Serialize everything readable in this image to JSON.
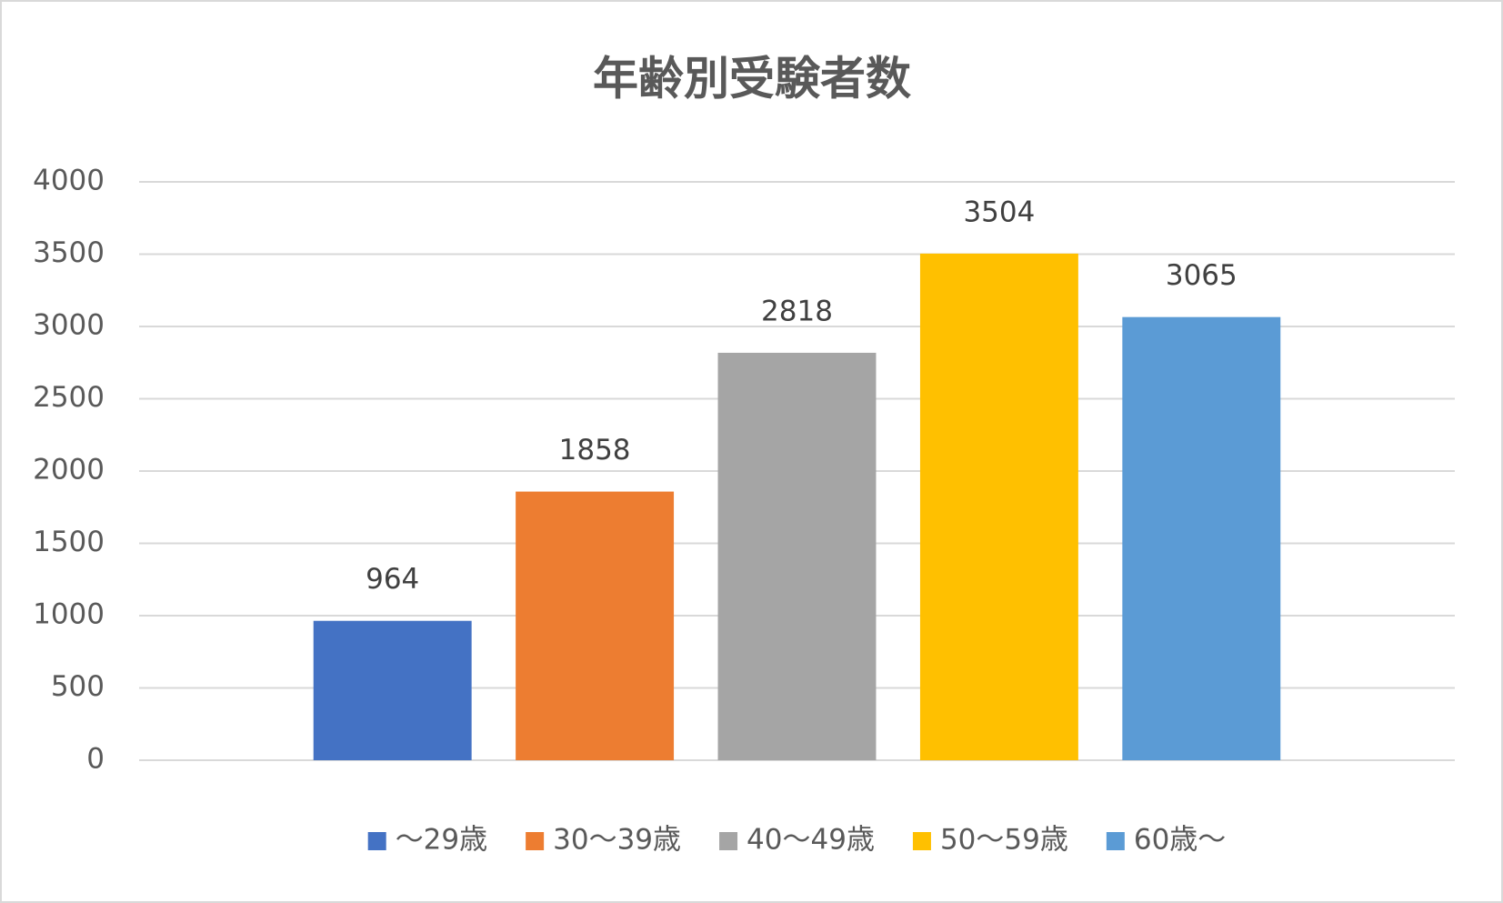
{
  "chart_data": {
    "type": "bar",
    "title": "年齢別受験者数",
    "categories": [
      null
    ],
    "series": [
      {
        "name": "～29歳",
        "color": "#4472c4",
        "values": [
          964
        ]
      },
      {
        "name": "30～39歳",
        "color": "#ed7d31",
        "values": [
          1858
        ]
      },
      {
        "name": "40～49歳",
        "color": "#a5a5a5",
        "values": [
          2818
        ]
      },
      {
        "name": "50～59歳",
        "color": "#ffc000",
        "values": [
          3504
        ]
      },
      {
        "name": "60歳～",
        "color": "#5b9bd5",
        "values": [
          3065
        ]
      }
    ],
    "ylim": [
      0,
      4000
    ],
    "yticks": [
      0,
      500,
      1000,
      1500,
      2000,
      2500,
      3000,
      3500,
      4000
    ],
    "grid": true,
    "legend": "bottom",
    "data_labels": true
  }
}
